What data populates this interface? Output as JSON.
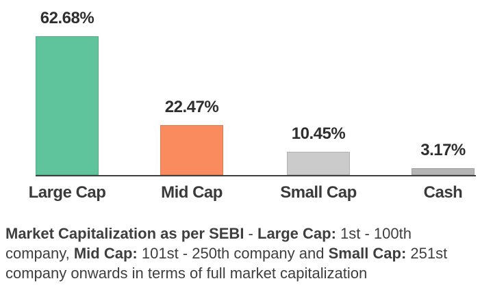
{
  "chart_data": {
    "type": "bar",
    "categories": [
      "Large Cap",
      "Mid Cap",
      "Small Cap",
      "Cash"
    ],
    "values": [
      62.68,
      22.47,
      10.45,
      3.17
    ],
    "value_labels": [
      "62.68%",
      "22.47%",
      "10.45%",
      "3.17%"
    ],
    "bar_colors": [
      "#5fc39b",
      "#f98b5e",
      "#cbcbcb",
      "#b5b5b5"
    ],
    "xlabel": "",
    "ylabel": "",
    "ylim": [
      0,
      65
    ],
    "grid": false,
    "legend": "none",
    "axis_line_color": "#3f3f3f",
    "value_label_color": "#2e2e2e",
    "category_label_color": "#3a3a3a"
  },
  "footnote": {
    "lines": [
      [
        {
          "text": "Market Capitalization as per SEBI",
          "bold": true
        },
        {
          "text": " - ",
          "bold": false
        },
        {
          "text": "Large Cap:",
          "bold": true
        },
        {
          "text": " 1st - 100th",
          "bold": false
        }
      ],
      [
        {
          "text": "company, ",
          "bold": false
        },
        {
          "text": "Mid Cap:",
          "bold": true
        },
        {
          "text": " 101st - 250th company and ",
          "bold": false
        },
        {
          "text": "Small Cap:",
          "bold": true
        },
        {
          "text": " 251st",
          "bold": false
        }
      ],
      [
        {
          "text": "company onwards in terms of full market capitalization",
          "bold": false
        }
      ]
    ]
  }
}
